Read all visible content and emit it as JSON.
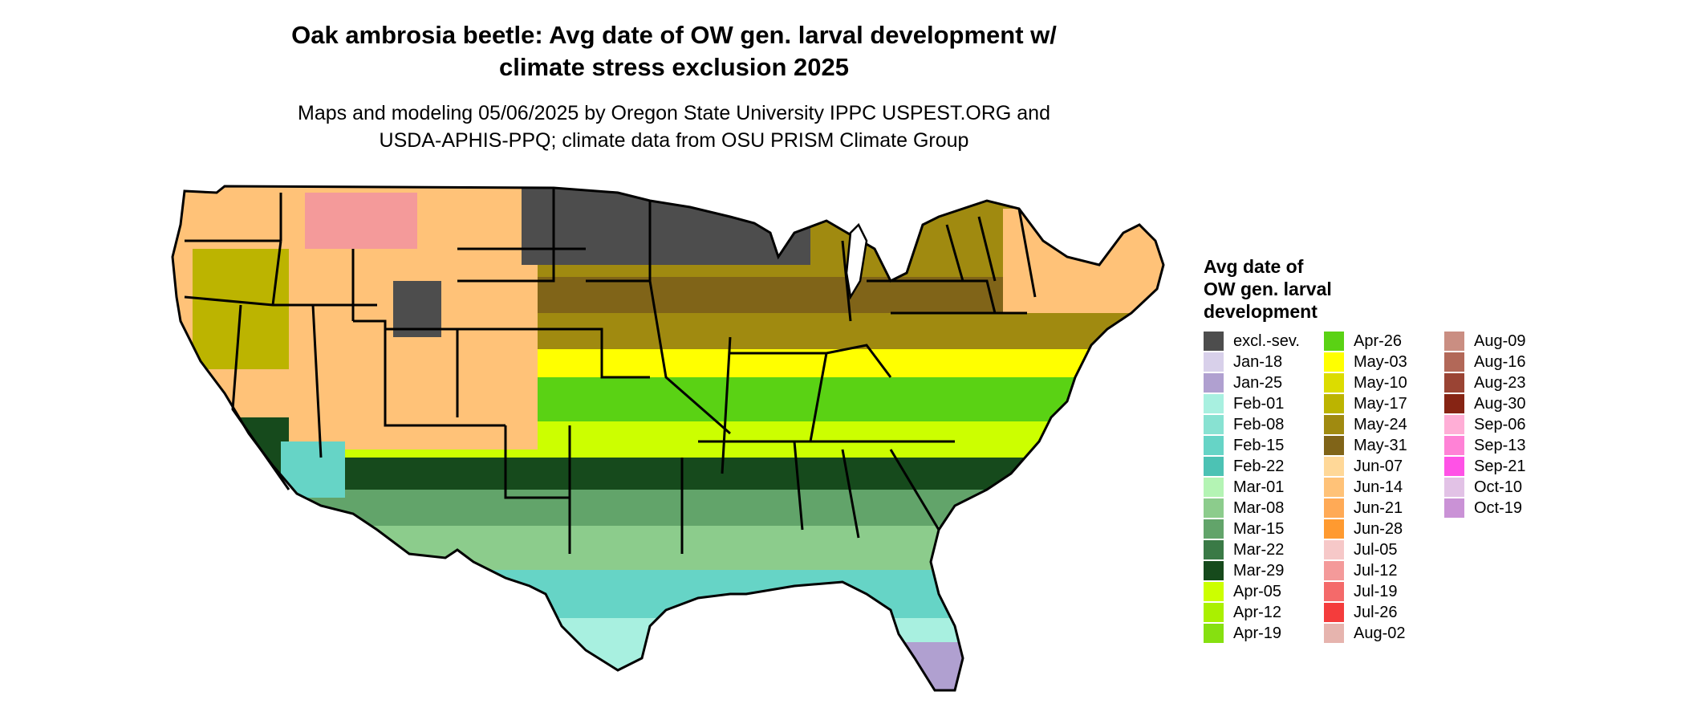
{
  "title_line1": "Oak ambrosia beetle: Avg date of OW gen. larval development w/",
  "title_line2": "climate stress exclusion 2025",
  "subtitle_line1": "Maps and modeling 05/06/2025 by Oregon State University IPPC USPEST.ORG and",
  "subtitle_line2": "USDA-APHIS-PPQ; climate data from OSU PRISM Climate Group",
  "legend": {
    "title_lines": [
      "Avg date of",
      "OW gen. larval",
      "development"
    ],
    "columns": [
      [
        {
          "label": "excl.-sev.",
          "color": "#4d4d4d"
        },
        {
          "label": "Jan-18",
          "color": "#d8d0ea"
        },
        {
          "label": "Jan-25",
          "color": "#b0a0d0"
        },
        {
          "label": "Feb-01",
          "color": "#a8f0e0"
        },
        {
          "label": "Feb-08",
          "color": "#88e2d2"
        },
        {
          "label": "Feb-15",
          "color": "#66d4c6"
        },
        {
          "label": "Feb-22",
          "color": "#4cc2b4"
        },
        {
          "label": "Mar-01",
          "color": "#b4f4b4"
        },
        {
          "label": "Mar-08",
          "color": "#8ccc8c"
        },
        {
          "label": "Mar-15",
          "color": "#62a46a"
        },
        {
          "label": "Mar-22",
          "color": "#3a7a46"
        },
        {
          "label": "Mar-29",
          "color": "#164a1c"
        },
        {
          "label": "Apr-05",
          "color": "#ccff00"
        },
        {
          "label": "Apr-12",
          "color": "#aaf000"
        },
        {
          "label": "Apr-19",
          "color": "#86e010"
        }
      ],
      [
        {
          "label": "Apr-26",
          "color": "#5ad214"
        },
        {
          "label": "May-03",
          "color": "#ffff00"
        },
        {
          "label": "May-10",
          "color": "#dcdc00"
        },
        {
          "label": "May-17",
          "color": "#bcb400"
        },
        {
          "label": "May-24",
          "color": "#a08a10"
        },
        {
          "label": "May-31",
          "color": "#806418"
        },
        {
          "label": "Jun-07",
          "color": "#ffd898"
        },
        {
          "label": "Jun-14",
          "color": "#ffc278"
        },
        {
          "label": "Jun-21",
          "color": "#ffaa56"
        },
        {
          "label": "Jun-28",
          "color": "#ff9a30"
        },
        {
          "label": "Jul-05",
          "color": "#f6c8c8"
        },
        {
          "label": "Jul-12",
          "color": "#f49a9a"
        },
        {
          "label": "Jul-19",
          "color": "#f46a6a"
        },
        {
          "label": "Jul-26",
          "color": "#f43c3c"
        },
        {
          "label": "Aug-02",
          "color": "#e6b4ae"
        }
      ],
      [
        {
          "label": "Aug-09",
          "color": "#ca8e82"
        },
        {
          "label": "Aug-16",
          "color": "#b26858"
        },
        {
          "label": "Aug-23",
          "color": "#9a4434"
        },
        {
          "label": "Aug-30",
          "color": "#862414"
        },
        {
          "label": "Sep-06",
          "color": "#ffaed6"
        },
        {
          "label": "Sep-13",
          "color": "#ff82d6"
        },
        {
          "label": "Sep-21",
          "color": "#ff52e6"
        },
        {
          "label": "Oct-10",
          "color": "#e2c2e6"
        },
        {
          "label": "Oct-19",
          "color": "#ca92d6"
        }
      ]
    ]
  },
  "map_colors": {
    "background": "#ffffff",
    "border": "#000000",
    "excluded": "#4d4d4d",
    "late_spring": "#dcdc00",
    "may_brown": "#a08a10",
    "may_dark": "#806418",
    "may_yellow": "#ffff00",
    "apr_green": "#5ad214",
    "apr_lime": "#ccff00",
    "mar_dark": "#164a1c",
    "mar_mid": "#62a46a",
    "mar_light": "#8ccc8c",
    "feb_teal": "#66d4c6",
    "feb_light": "#a8f0e0",
    "jan_lilac": "#b0a0d0",
    "jun_peach": "#ffc278",
    "jul_pink": "#f49a9a",
    "olive": "#bcb400"
  }
}
